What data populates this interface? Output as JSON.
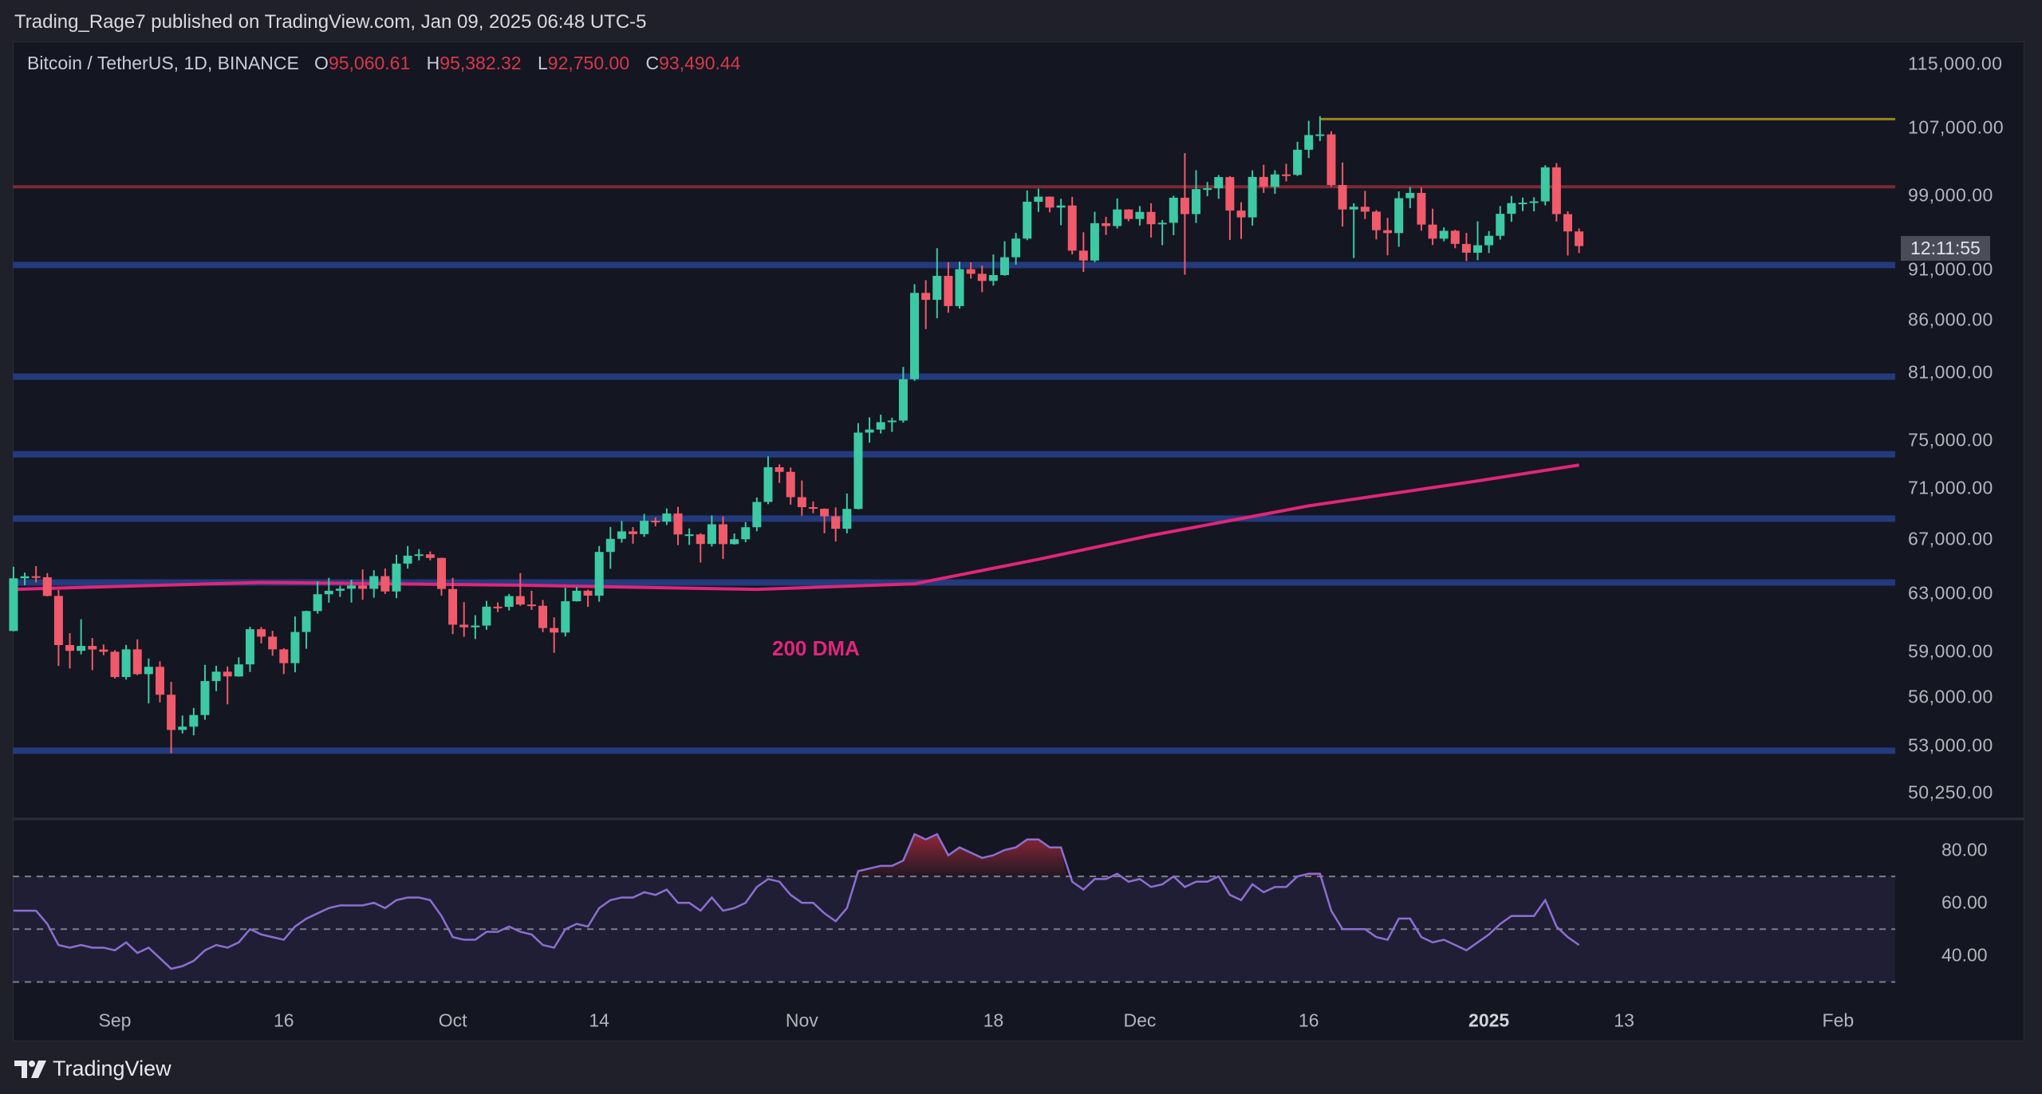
{
  "header": {
    "published": "Trading_Rage7 published on TradingView.com, Jan 09, 2025 06:48 UTC-5"
  },
  "legend": {
    "symbol": "Bitcoin / TetherUS, 1D, BINANCE",
    "o_label": "O",
    "o": "95,060.61",
    "h_label": "H",
    "h": "95,382.32",
    "l_label": "L",
    "l": "92,750.00",
    "c_label": "C",
    "c": "93,490.44"
  },
  "countdown": "12:11:55",
  "footer": {
    "brand": "TradingView"
  },
  "colors": {
    "up": "#3cc9a4",
    "down": "#f05a6a",
    "dma": "#e0267a",
    "support": "#233a7c",
    "resistance": "#7a2a35",
    "ath": "#9a8420",
    "rsi": "#8c6fd0"
  },
  "chart_data": [
    {
      "type": "candlestick",
      "title": "Bitcoin / TetherUS, 1D, BINANCE",
      "scale": "log",
      "ylim": [
        50250,
        115000
      ],
      "y_ticks": [
        "115,000.00",
        "107,000.00",
        "99,000.00",
        "91,000.00",
        "86,000.00",
        "81,000.00",
        "75,000.00",
        "71,000.00",
        "67,000.00",
        "63,000.00",
        "59,000.00",
        "56,000.00",
        "53,000.00",
        "50,250.00"
      ],
      "x_ticks": [
        {
          "label": "Sep",
          "day": 9
        },
        {
          "label": "16",
          "day": 24
        },
        {
          "label": "Oct",
          "day": 39
        },
        {
          "label": "14",
          "day": 52
        },
        {
          "label": "Nov",
          "day": 70
        },
        {
          "label": "18",
          "day": 87
        },
        {
          "label": "Dec",
          "day": 100
        },
        {
          "label": "16",
          "day": 115
        },
        {
          "label": "2025",
          "day": 131,
          "bold": true
        },
        {
          "label": "13",
          "day": 143
        },
        {
          "label": "Feb",
          "day": 162
        }
      ],
      "first_date": "2024-08-23",
      "ohlc": [
        [
          60380,
          64950,
          60350,
          64100
        ],
        [
          64100,
          64520,
          63600,
          64250
        ],
        [
          64250,
          65000,
          63800,
          64180
        ],
        [
          64180,
          64480,
          62800,
          62830
        ],
        [
          62830,
          63250,
          58030,
          59420
        ],
        [
          59420,
          60230,
          57860,
          59030
        ],
        [
          59030,
          61190,
          58790,
          59360
        ],
        [
          59360,
          59900,
          57750,
          59120
        ],
        [
          59120,
          59460,
          58740,
          58970
        ],
        [
          58970,
          59080,
          57200,
          57300
        ],
        [
          57300,
          59430,
          57130,
          59130
        ],
        [
          59130,
          59810,
          57420,
          57490
        ],
        [
          57490,
          58520,
          55610,
          57970
        ],
        [
          57970,
          58330,
          55670,
          56160
        ],
        [
          56160,
          56990,
          52550,
          53960
        ],
        [
          53960,
          54850,
          53740,
          54160
        ],
        [
          54160,
          55320,
          53630,
          54880
        ],
        [
          54880,
          58100,
          54590,
          57040
        ],
        [
          57040,
          58040,
          56390,
          57650
        ],
        [
          57650,
          57990,
          55550,
          57340
        ],
        [
          57340,
          58600,
          57320,
          58130
        ],
        [
          58130,
          60670,
          57630,
          60500
        ],
        [
          60500,
          60650,
          59530,
          59990
        ],
        [
          59990,
          60390,
          58700,
          59130
        ],
        [
          59130,
          59210,
          57490,
          58210
        ],
        [
          58210,
          61380,
          57610,
          60310
        ],
        [
          60310,
          61790,
          59170,
          61760
        ],
        [
          61760,
          63880,
          61570,
          62950
        ],
        [
          62950,
          64130,
          62350,
          63200
        ],
        [
          63200,
          63560,
          62760,
          63350
        ],
        [
          63350,
          64000,
          62360,
          63580
        ],
        [
          63580,
          64750,
          62560,
          63340
        ],
        [
          63340,
          64690,
          62700,
          64260
        ],
        [
          64260,
          64820,
          62970,
          63150
        ],
        [
          63150,
          65840,
          62670,
          65180
        ],
        [
          65180,
          66500,
          64810,
          65770
        ],
        [
          65770,
          66260,
          65420,
          65870
        ],
        [
          65870,
          66080,
          65420,
          65600
        ],
        [
          65600,
          65620,
          62850,
          63330
        ],
        [
          63330,
          64130,
          60160,
          60810
        ],
        [
          60810,
          62390,
          59980,
          60630
        ],
        [
          60630,
          61470,
          59830,
          60750
        ],
        [
          60750,
          62480,
          60460,
          62070
        ],
        [
          62070,
          62370,
          61690,
          62060
        ],
        [
          62060,
          62970,
          61800,
          62820
        ],
        [
          62820,
          64480,
          62120,
          62220
        ],
        [
          62220,
          63200,
          61840,
          62130
        ],
        [
          62130,
          62540,
          60300,
          60580
        ],
        [
          60580,
          61320,
          58900,
          60270
        ],
        [
          60270,
          63420,
          60000,
          62450
        ],
        [
          62450,
          63480,
          62430,
          63200
        ],
        [
          63200,
          63280,
          62050,
          62850
        ],
        [
          62850,
          66500,
          62420,
          66050
        ],
        [
          66050,
          67950,
          64800,
          67040
        ],
        [
          67040,
          68420,
          66750,
          67610
        ],
        [
          67610,
          67940,
          66670,
          67400
        ],
        [
          67400,
          68970,
          67190,
          68430
        ],
        [
          68430,
          68690,
          68000,
          68360
        ],
        [
          68360,
          69400,
          68100,
          69000
        ],
        [
          69000,
          69520,
          66560,
          67370
        ],
        [
          67370,
          67840,
          66580,
          67380
        ],
        [
          67380,
          67470,
          65260,
          66650
        ],
        [
          66650,
          68850,
          66460,
          68160
        ],
        [
          68160,
          68770,
          65520,
          66640
        ],
        [
          66640,
          67450,
          66600,
          67010
        ],
        [
          67010,
          68330,
          66780,
          67930
        ],
        [
          67930,
          70270,
          67620,
          69910
        ],
        [
          69910,
          73620,
          69730,
          72720
        ],
        [
          72720,
          72960,
          71440,
          72340
        ],
        [
          72340,
          72700,
          69690,
          70290
        ],
        [
          70290,
          71630,
          68820,
          69500
        ],
        [
          69500,
          69950,
          69020,
          69370
        ],
        [
          69370,
          69400,
          67460,
          68780
        ],
        [
          68780,
          69480,
          66840,
          67810
        ],
        [
          67810,
          70580,
          67460,
          69360
        ],
        [
          69360,
          76460,
          69320,
          75640
        ],
        [
          75640,
          76960,
          74780,
          75900
        ],
        [
          75900,
          77200,
          75560,
          76540
        ],
        [
          76540,
          76930,
          75700,
          76680
        ],
        [
          76680,
          81500,
          76490,
          80370
        ],
        [
          80370,
          89530,
          80220,
          88650
        ],
        [
          88650,
          89940,
          85070,
          87950
        ],
        [
          87950,
          93270,
          86130,
          90380
        ],
        [
          90380,
          91790,
          86670,
          87330
        ],
        [
          87330,
          91850,
          87070,
          91070
        ],
        [
          91070,
          91770,
          90090,
          90590
        ],
        [
          90590,
          91450,
          88720,
          89860
        ],
        [
          89860,
          92600,
          89380,
          90460
        ],
        [
          90460,
          94000,
          90390,
          92310
        ],
        [
          92310,
          94900,
          91530,
          94290
        ],
        [
          94290,
          99590,
          94120,
          98320
        ],
        [
          98320,
          99800,
          97190,
          98890
        ],
        [
          98890,
          98910,
          97140,
          97670
        ],
        [
          97670,
          98650,
          95730,
          97900
        ],
        [
          97900,
          98870,
          92600,
          93010
        ],
        [
          93010,
          94970,
          90790,
          91970
        ],
        [
          91970,
          97210,
          91800,
          95950
        ],
        [
          95950,
          96650,
          94680,
          95640
        ],
        [
          95640,
          98690,
          95360,
          97460
        ],
        [
          97460,
          97500,
          96160,
          96410
        ],
        [
          96410,
          97840,
          95690,
          97190
        ],
        [
          97190,
          98150,
          94400,
          95840
        ],
        [
          95840,
          96300,
          93580,
          96000
        ],
        [
          96000,
          99000,
          94660,
          98770
        ],
        [
          98770,
          103900,
          90500,
          96950
        ],
        [
          96950,
          101900,
          95980,
          99740
        ],
        [
          99740,
          100550,
          98940,
          99830
        ],
        [
          99830,
          101350,
          98650,
          101110
        ],
        [
          101110,
          101220,
          94150,
          97340
        ],
        [
          97340,
          98270,
          94260,
          96590
        ],
        [
          96590,
          101890,
          95690,
          101130
        ],
        [
          101130,
          102540,
          99310,
          100000
        ],
        [
          100000,
          101900,
          99210,
          101420
        ],
        [
          101420,
          102650,
          100610,
          101370
        ],
        [
          101370,
          105250,
          101240,
          104300
        ],
        [
          104300,
          107790,
          103330,
          106060
        ],
        [
          106060,
          108350,
          105320,
          106140
        ],
        [
          106140,
          106520,
          100000,
          100200
        ],
        [
          100200,
          102800,
          95590,
          97460
        ],
        [
          97460,
          98150,
          92230,
          97760
        ],
        [
          97760,
          99540,
          96400,
          97220
        ],
        [
          97220,
          97400,
          94200,
          95190
        ],
        [
          95190,
          96540,
          92520,
          94880
        ],
        [
          94880,
          99490,
          93410,
          98720
        ],
        [
          98720,
          99960,
          97600,
          99310
        ],
        [
          99310,
          99960,
          95140,
          95800
        ],
        [
          95800,
          97550,
          93600,
          94280
        ],
        [
          94280,
          95500,
          94000,
          95130
        ],
        [
          95130,
          95240,
          93260,
          93720
        ],
        [
          93720,
          94900,
          91910,
          92790
        ],
        [
          92790,
          96160,
          92000,
          93580
        ],
        [
          93580,
          95100,
          92750,
          94590
        ],
        [
          94590,
          97840,
          94180,
          96980
        ],
        [
          96980,
          98970,
          96100,
          98170
        ],
        [
          98170,
          98780,
          97280,
          98220
        ],
        [
          98220,
          98820,
          97250,
          98360
        ],
        [
          98360,
          102480,
          97910,
          102240
        ],
        [
          102240,
          102720,
          96130,
          96950
        ],
        [
          96950,
          97260,
          92500,
          95060
        ],
        [
          95060,
          95382.32,
          92750,
          93490.44
        ]
      ],
      "dma200": {
        "label": "200 DMA",
        "points": [
          [
            0,
            63300
          ],
          [
            22,
            63800
          ],
          [
            45,
            63600
          ],
          [
            66,
            63300
          ],
          [
            80,
            63700
          ],
          [
            91,
            65500
          ],
          [
            101,
            67300
          ],
          [
            115,
            69600
          ],
          [
            130,
            71600
          ],
          [
            139,
            72900
          ]
        ]
      },
      "levels": [
        {
          "name": "all-time-high-line",
          "price": 108000,
          "start_day": 116,
          "kind": "ath"
        },
        {
          "name": "resistance-line",
          "price": 100000,
          "start_day": 0,
          "kind": "resistance"
        },
        {
          "name": "support-91500",
          "price": 91500,
          "start_day": 0,
          "kind": "support"
        },
        {
          "name": "support-80600",
          "price": 80600,
          "start_day": 0,
          "kind": "support"
        },
        {
          "name": "support-73800",
          "price": 73800,
          "start_day": 0,
          "kind": "support"
        },
        {
          "name": "support-68600",
          "price": 68600,
          "start_day": 0,
          "kind": "support"
        },
        {
          "name": "support-63800",
          "price": 63800,
          "start_day": 0,
          "kind": "support"
        },
        {
          "name": "support-52700",
          "price": 52700,
          "start_day": 0,
          "kind": "support"
        }
      ]
    },
    {
      "type": "line",
      "title": "RSI",
      "ylim": [
        25,
        92
      ],
      "y_ticks": [
        "80.00",
        "60.00",
        "40.00"
      ],
      "bands": [
        70,
        50,
        30
      ],
      "values": [
        57,
        57,
        57,
        52,
        44,
        43,
        44,
        43,
        43,
        42,
        45,
        41,
        43,
        39,
        35,
        36,
        38,
        42,
        44,
        43,
        45,
        50,
        48,
        47,
        46,
        51,
        54,
        56,
        58,
        59,
        59,
        59,
        60,
        58,
        61,
        62,
        62,
        61,
        55,
        47,
        46,
        46,
        49,
        49,
        51,
        49,
        48,
        44,
        43,
        50,
        52,
        51,
        58,
        61,
        62,
        62,
        64,
        63,
        65,
        60,
        60,
        57,
        62,
        57,
        58,
        60,
        66,
        69,
        68,
        63,
        60,
        60,
        56,
        53,
        58,
        72,
        73,
        74,
        74,
        76,
        86,
        84,
        86,
        78,
        81,
        79,
        77,
        78,
        80,
        81,
        84,
        84,
        81,
        81,
        68,
        65,
        69,
        69,
        71,
        68,
        69,
        66,
        67,
        70,
        66,
        68,
        68,
        70,
        63,
        61,
        67,
        64,
        66,
        66,
        70,
        71,
        71,
        57,
        50,
        50,
        50,
        47,
        46,
        54,
        54,
        47,
        45,
        46,
        44,
        42,
        45,
        48,
        52,
        55,
        55,
        55,
        61,
        51,
        47,
        44
      ]
    }
  ]
}
